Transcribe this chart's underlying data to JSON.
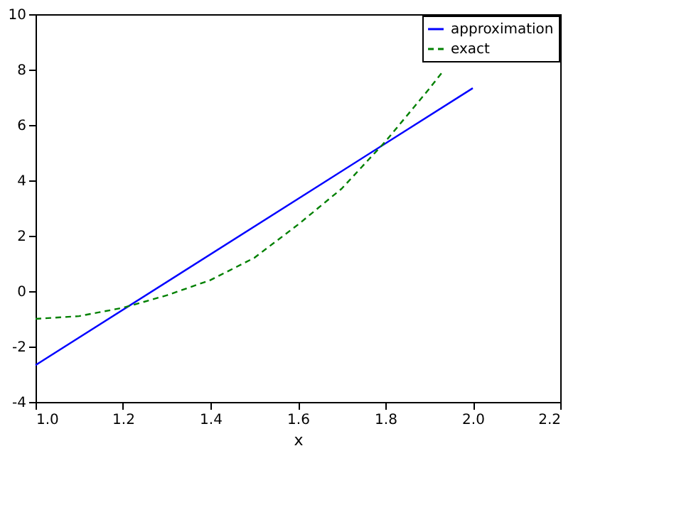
{
  "chart_data": {
    "type": "line",
    "xlabel": "x",
    "xlim": [
      1.0,
      2.2
    ],
    "ylim": [
      -4,
      10
    ],
    "xticks": [
      {
        "value": 1.0,
        "label": "1.0"
      },
      {
        "value": 1.2,
        "label": "1.2"
      },
      {
        "value": 1.4,
        "label": "1.4"
      },
      {
        "value": 1.6,
        "label": "1.6"
      },
      {
        "value": 1.8,
        "label": "1.8"
      },
      {
        "value": 2.0,
        "label": "2.0"
      },
      {
        "value": 2.2,
        "label": "2.2"
      }
    ],
    "yticks": [
      -4,
      -2,
      0,
      2,
      4,
      6,
      8,
      10
    ],
    "grid": false,
    "legend": "top right",
    "series": [
      {
        "name": "approximation",
        "color": "#0000ff",
        "line_style": "solid",
        "x": [
          1.0,
          2.0
        ],
        "values": [
          -2.67,
          7.33
        ]
      },
      {
        "name": "exact",
        "color": "#008000",
        "line_style": "dashed",
        "x": [
          1.0,
          1.1,
          1.2,
          1.3,
          1.4,
          1.5,
          1.6,
          1.7,
          1.8,
          1.9,
          1.93
        ],
        "values": [
          -1.0,
          -0.9,
          -0.6,
          -0.15,
          0.4,
          1.2,
          2.4,
          3.7,
          5.4,
          7.3,
          7.9
        ]
      }
    ]
  }
}
